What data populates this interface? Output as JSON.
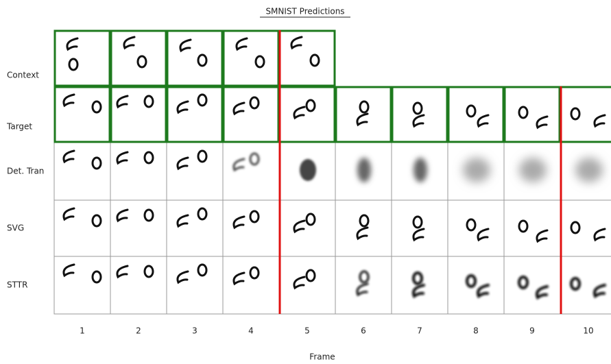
{
  "title": "SMNIST Predictions",
  "row_labels": [
    "Context",
    "Target",
    "Det. Tran",
    "SVG",
    "STTR"
  ],
  "column_labels": [
    1,
    2,
    3,
    4,
    5,
    6,
    7,
    8,
    9,
    10
  ],
  "x_label": "Frame"
}
